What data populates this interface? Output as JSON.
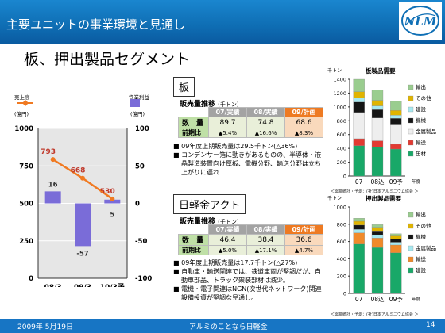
{
  "header": {
    "title": "主要ユニットの事業環境と見通し",
    "logo_text": "NLM"
  },
  "segment_title": "板、押出製品セグメント",
  "footer": {
    "date": "2009年 5月19日",
    "company": "アルミのことなら日軽金",
    "page": "14"
  },
  "colors": {
    "header": "#0f6fb5",
    "orange": "#f07a22",
    "purple": "#7a6cd8",
    "green": "#bfe0a6"
  },
  "chart_data": [
    {
      "type": "bar+line",
      "left_axis_title": "売上高",
      "left_axis_unit": "(億円)",
      "right_axis_title": "営業利益",
      "right_axis_unit": "(億円)",
      "categories": [
        "08/3",
        "09/3",
        "10/3予"
      ],
      "line_values": [
        793,
        668,
        530
      ],
      "bar_values": [
        16,
        -57,
        5
      ],
      "left_ylim": [
        0,
        1000
      ],
      "right_ylim": [
        -100,
        100
      ],
      "left_ticks": [
        "1000",
        "750",
        "500",
        "250",
        "0"
      ],
      "right_ticks": [
        "100",
        "50",
        "0",
        "-50",
        "-100"
      ]
    },
    {
      "type": "stacked-bar",
      "title": "板製品需要",
      "unit": "千トン",
      "x_unit": "年度",
      "categories": [
        "07",
        "08込",
        "09予"
      ],
      "ylim": [
        0,
        1400
      ],
      "ticks": [
        "1400",
        "1200",
        "1000",
        "800",
        "600",
        "400",
        "200",
        "0"
      ],
      "series": [
        {
          "name": "缶材",
          "color": "#19a868",
          "values": [
            440,
            420,
            390
          ]
        },
        {
          "name": "輸送",
          "color": "#e23a32",
          "values": [
            100,
            90,
            70
          ]
        },
        {
          "name": "金属製品",
          "color": "#eeeeee",
          "values": [
            380,
            330,
            280
          ]
        },
        {
          "name": "機械",
          "color": "#151515",
          "values": [
            150,
            120,
            95
          ]
        },
        {
          "name": "建設",
          "color": "#a6e8f0",
          "values": [
            60,
            55,
            45
          ]
        },
        {
          "name": "その他",
          "color": "#e0b400",
          "values": [
            90,
            80,
            70
          ]
        },
        {
          "name": "輸出",
          "color": "#9acd8f",
          "values": [
            180,
            150,
            130
          ]
        }
      ],
      "note": "＜需要統計・予測：(社)日本アルミニウム協会 ＞"
    },
    {
      "type": "stacked-bar",
      "title": "押出製品需要",
      "unit": "千トン",
      "x_unit": "年度",
      "categories": [
        "07",
        "08込",
        "09予"
      ],
      "ylim": [
        0,
        1000
      ],
      "ticks": [
        "1000",
        "800",
        "600",
        "400",
        "200",
        "0"
      ],
      "series": [
        {
          "name": "建設",
          "color": "#19a868",
          "values": [
            570,
            530,
            470
          ]
        },
        {
          "name": "輸送",
          "color": "#f08a2a",
          "values": [
            130,
            110,
            90
          ]
        },
        {
          "name": "金属製品",
          "color": "#a6e8f0",
          "values": [
            40,
            38,
            32
          ]
        },
        {
          "name": "機械",
          "color": "#151515",
          "values": [
            50,
            45,
            35
          ]
        },
        {
          "name": "その他",
          "color": "#e0b400",
          "values": [
            45,
            42,
            38
          ]
        },
        {
          "name": "輸出",
          "color": "#9acd8f",
          "values": [
            35,
            30,
            25
          ]
        }
      ],
      "note": "＜需要統計・予測：(社)日本アルミニウム協会 ＞"
    }
  ],
  "ita": {
    "label": "板",
    "table_title": "販売量推移",
    "table_unit": "(千トン)",
    "headers": [
      "07/実績",
      "08/実績",
      "09/計画"
    ],
    "rows": [
      {
        "label": "数　量",
        "values": [
          "89.7",
          "74.8",
          "68.6"
        ]
      },
      {
        "label": "前期比",
        "values": [
          "▲5.4%",
          "▲16.6%",
          "▲8.3%"
        ]
      }
    ],
    "bullets": [
      "09年度上期販売量は29.5千トン(△36%)",
      "コンデンサー箔に動きがあるものの、半導体・液晶製造装置向け厚板、電機分野、輸送分野は立ち上がりに遅れ"
    ]
  },
  "nikkei": {
    "label": "日軽金アクト",
    "table_title": "販売量推移",
    "table_unit": "(千トン)",
    "headers": [
      "07/実績",
      "08/実績",
      "09/計画"
    ],
    "rows": [
      {
        "label": "数　量",
        "values": [
          "46.4",
          "38.4",
          "36.6"
        ]
      },
      {
        "label": "前期比",
        "values": [
          "▲5.0%",
          "▲17.1%",
          "▲4.7%"
        ]
      }
    ],
    "bullets": [
      "09年度上期販売量は17.7千トン(△27%)",
      "自動車・輸送関連では、鉄道車両が堅調だが、自動車部品、トラック架装部材は減少。",
      "電機・電子関連はNGN(次世代ネットワーク)関連設備投資が堅調な見通し。"
    ]
  }
}
